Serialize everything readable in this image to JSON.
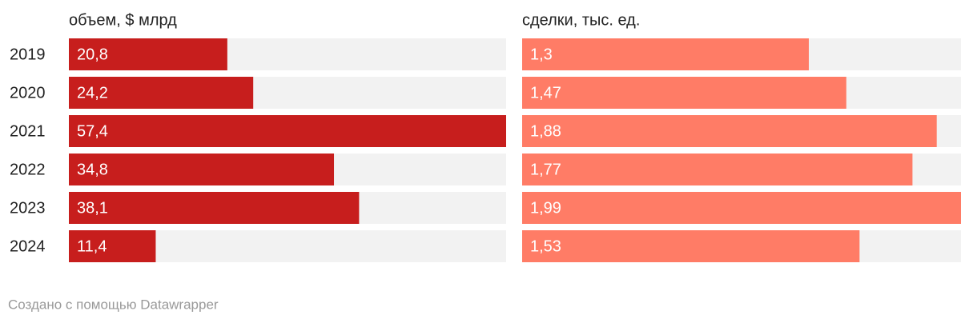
{
  "chart_data": {
    "type": "bar",
    "categories": [
      "2019",
      "2020",
      "2021",
      "2022",
      "2023",
      "2024"
    ],
    "series": [
      {
        "name": "объем, $ млрд",
        "color": "#c71e1d",
        "xlim": [
          0,
          57.4
        ],
        "values": [
          20.8,
          24.2,
          57.4,
          34.8,
          38.1,
          11.4
        ],
        "value_labels": [
          "20,8",
          "24,2",
          "57,4",
          "34,8",
          "38,1",
          "11,4"
        ]
      },
      {
        "name": "сделки, тыс. ед.",
        "color": "#ff7c66",
        "xlim": [
          0,
          1.99
        ],
        "values": [
          1.3,
          1.47,
          1.88,
          1.77,
          1.99,
          1.53
        ],
        "value_labels": [
          "1,3",
          "1,47",
          "1,88",
          "1,77",
          "1,99",
          "1,53"
        ]
      }
    ]
  },
  "footer": "Создано с помощью Datawrapper"
}
